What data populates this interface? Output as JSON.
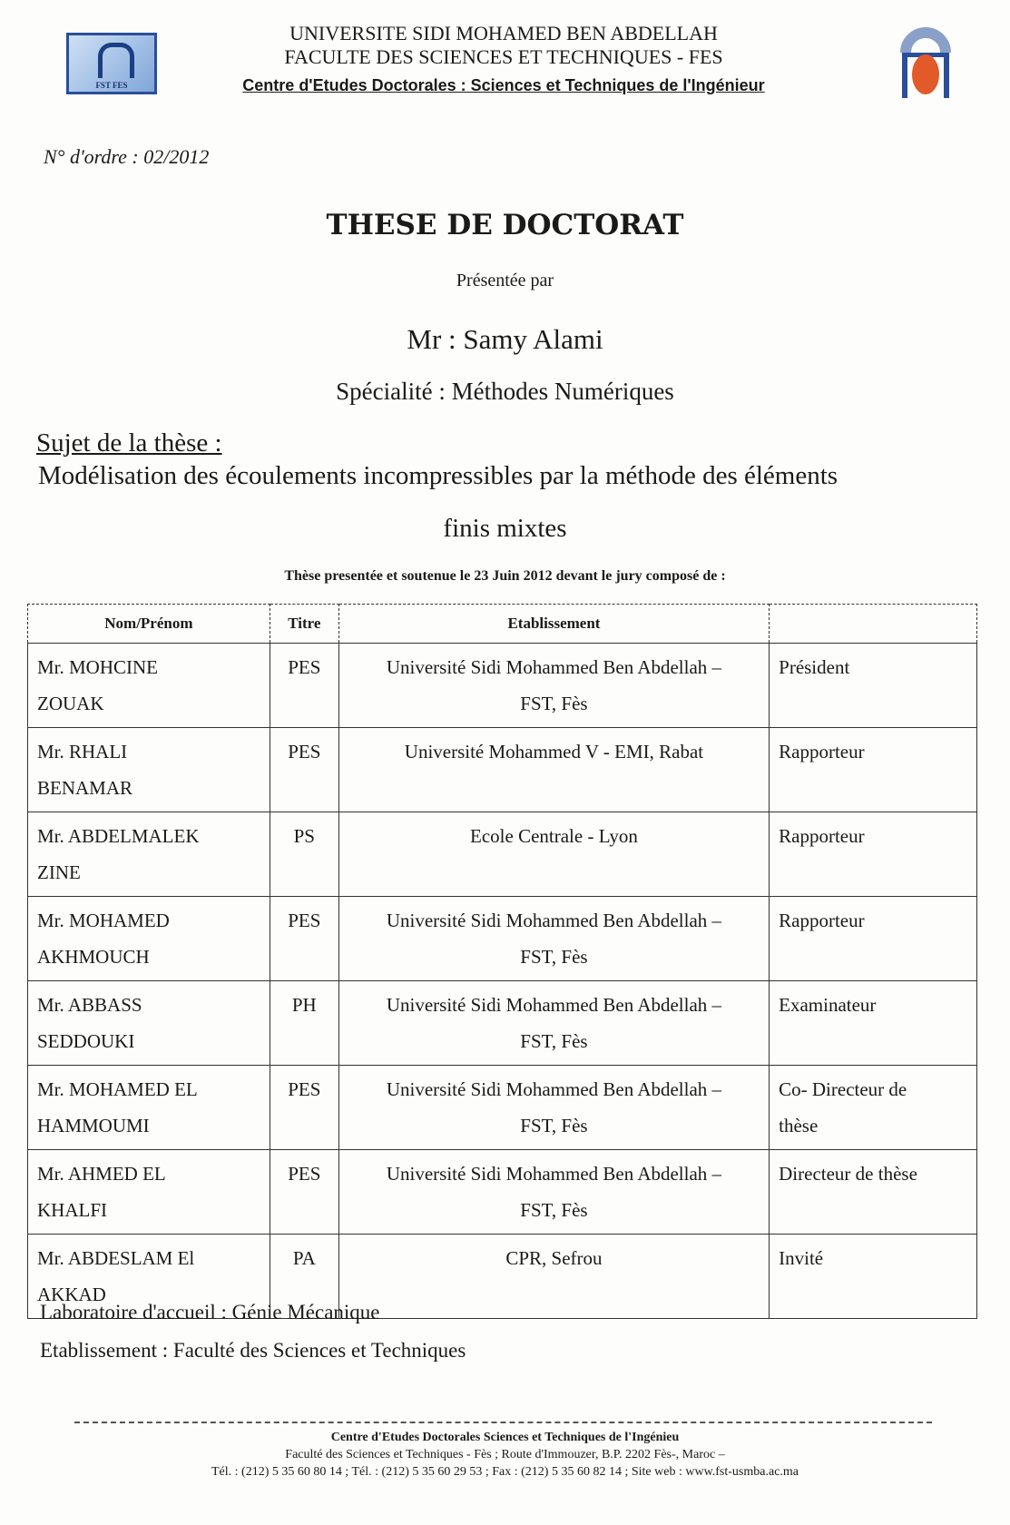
{
  "header": {
    "university": "UNIVERSITE SIDI MOHAMED BEN ABDELLAH",
    "faculty": "FACULTE DES SCIENCES ET TECHNIQUES - FES",
    "centre": "Centre d'Etudes Doctorales : Sciences et Techniques de l'Ingénieur",
    "logo_left_text": "FST FES"
  },
  "order_number": "N° d'ordre : 02/2012",
  "title": "THESE DE DOCTORAT",
  "presented_by": "Présentée par",
  "candidate": "Mr : Samy Alami",
  "speciality": "Spécialité : Méthodes Numériques",
  "subject_label": "Sujet de la thèse :",
  "subject_line1": "Modélisation des écoulements incompressibles par la méthode des éléments",
  "subject_line2": "finis mixtes",
  "defense": "Thèse presentée et soutenue le 23 Juin 2012 devant le jury composé de :",
  "table": {
    "headers": [
      "Nom/Prénom",
      "Titre",
      "Etablissement",
      ""
    ],
    "rows": [
      {
        "name1": "Mr. MOHCINE",
        "name2": "ZOUAK",
        "titre": "PES",
        "etab1": "Université Sidi Mohammed Ben Abdellah –",
        "etab2": "FST, Fès",
        "role1": "Président",
        "role2": ""
      },
      {
        "name1": "Mr. RHALI",
        "name2": "BENAMAR",
        "titre": "PES",
        "etab1": "Université  Mohammed V - EMI, Rabat",
        "etab2": "",
        "role1": "Rapporteur",
        "role2": ""
      },
      {
        "name1": "Mr. ABDELMALEK",
        "name2": "ZINE",
        "titre": "PS",
        "etab1": "Ecole Centrale - Lyon",
        "etab2": "",
        "role1": "Rapporteur",
        "role2": ""
      },
      {
        "name1": "Mr. MOHAMED",
        "name2": "AKHMOUCH",
        "titre": "PES",
        "etab1": "Université Sidi Mohammed Ben Abdellah –",
        "etab2": "FST, Fès",
        "role1": "Rapporteur",
        "role2": ""
      },
      {
        "name1": "Mr. ABBASS",
        "name2": "SEDDOUKI",
        "titre": "PH",
        "etab1": "Université Sidi Mohammed Ben Abdellah –",
        "etab2": "FST, Fès",
        "role1": "Examinateur",
        "role2": ""
      },
      {
        "name1": "Mr. MOHAMED  EL",
        "name2": "HAMMOUMI",
        "titre": "PES",
        "etab1": "Université Sidi Mohammed Ben Abdellah –",
        "etab2": "FST, Fès",
        "role1": "Co- Directeur de",
        "role2": "thèse"
      },
      {
        "name1": "Mr. AHMED EL",
        "name2": "KHALFI",
        "titre": "PES",
        "etab1": "Université Sidi Mohammed Ben Abdellah –",
        "etab2": "FST, Fès",
        "role1": "Directeur de thèse",
        "role2": ""
      },
      {
        "name1": "Mr. ABDESLAM  El",
        "name2": "AKKAD",
        "titre": "PA",
        "etab1": "CPR, Sefrou",
        "etab2": "",
        "role1": "Invité",
        "role2": ""
      }
    ]
  },
  "laboratory": "Laboratoire d'accueil : Génie Mécanique",
  "establishment": "Etablissement : Faculté des Sciences et Techniques",
  "footer": {
    "line1": "Centre d'Etudes Doctorales Sciences et Techniques de l'Ingénieu",
    "line2": "Faculté des Sciences et Techniques - Fès ; Route d'Immouzer, B.P. 2202 Fès-, Maroc –",
    "line3": "Tél. : (212) 5 35 60 80 14 ; Tél. : (212) 5 35 60 29 53 ;   Fax : (212) 5 35 60 82  14 ;   Site web : www.fst-usmba.ac.ma"
  }
}
